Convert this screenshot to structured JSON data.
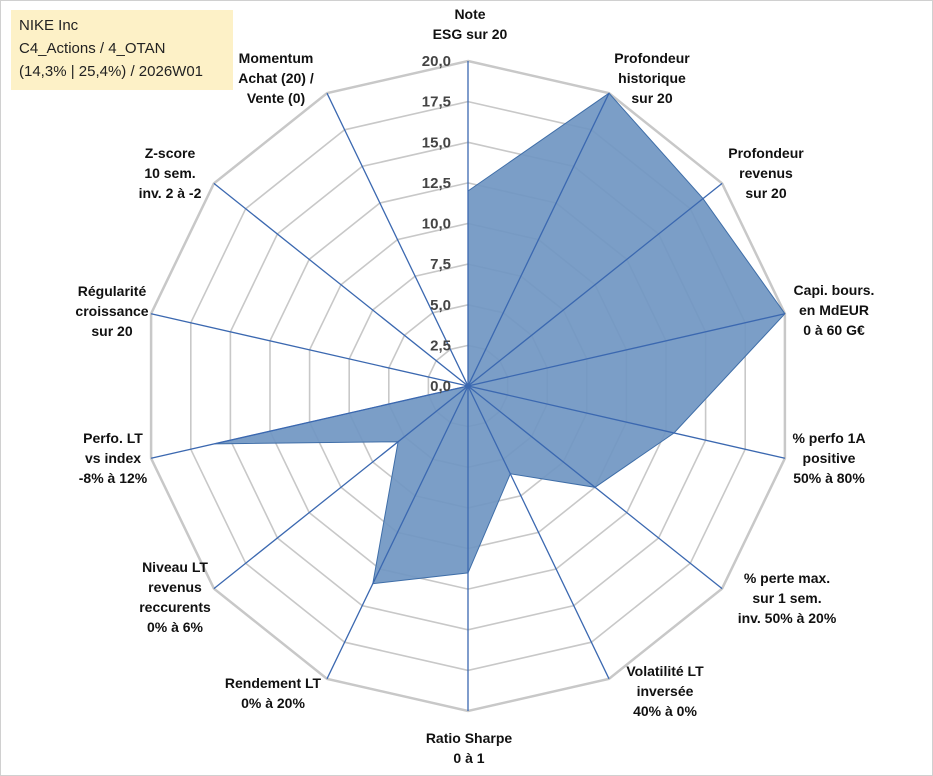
{
  "header": {
    "line1": "NIKE Inc",
    "line2": "C4_Actions / 4_OTAN",
    "line3": "(14,3% | 25,4%) / 2026W01"
  },
  "chart_data": {
    "type": "radar",
    "rmin": 0,
    "rmax": 20,
    "tick_labels": [
      "0,0",
      "2,5",
      "5,0",
      "7,5",
      "10,0",
      "12,5",
      "15,0",
      "17,5",
      "20,0"
    ],
    "axes": [
      {
        "label": [
          "Note",
          "ESG sur 20"
        ],
        "value": 12.0
      },
      {
        "label": [
          "Profondeur",
          "historique",
          "sur 20"
        ],
        "value": 20.0
      },
      {
        "label": [
          "Profondeur",
          "revenus",
          "sur 20"
        ],
        "value": 18.5
      },
      {
        "label": [
          "Capi. bours.",
          "en MdEUR",
          "0 à 60 G€"
        ],
        "value": 20.0
      },
      {
        "label": [
          "% perfo 1A",
          "positive",
          "50% à 80%"
        ],
        "value": 13.0
      },
      {
        "label": [
          "% perte max.",
          "sur 1 sem.",
          "inv. 50% à 20%"
        ],
        "value": 10.0
      },
      {
        "label": [
          "Volatilité LT",
          "inversée",
          "40% à 0%"
        ],
        "value": 6.0
      },
      {
        "label": [
          "Ratio Sharpe",
          "0 à 1"
        ],
        "value": 11.5
      },
      {
        "label": [
          "Rendement LT",
          "0% à 20%"
        ],
        "value": 13.5
      },
      {
        "label": [
          "Niveau LT",
          "revenus",
          "reccurents",
          "0% à 6%"
        ],
        "value": 5.5
      },
      {
        "label": [
          "Perfo. LT",
          "vs index",
          "-8% à 12%"
        ],
        "value": 16.0
      },
      {
        "label": [
          "Régularité",
          "croissance",
          "sur 20"
        ],
        "value": 0.0
      },
      {
        "label": [
          "Z-score",
          "10 sem.",
          "inv. 2 à -2"
        ],
        "value": 0.0
      },
      {
        "label": [
          "Momentum",
          "Achat (20) /",
          "Vente (0)"
        ],
        "value": 0.0
      }
    ],
    "colors": {
      "fill": "#7096c2",
      "stroke": "#3f6ea8",
      "grid": "#c8c8c8",
      "spoke": "#3b68b0"
    },
    "grid": true,
    "legend": "none"
  }
}
